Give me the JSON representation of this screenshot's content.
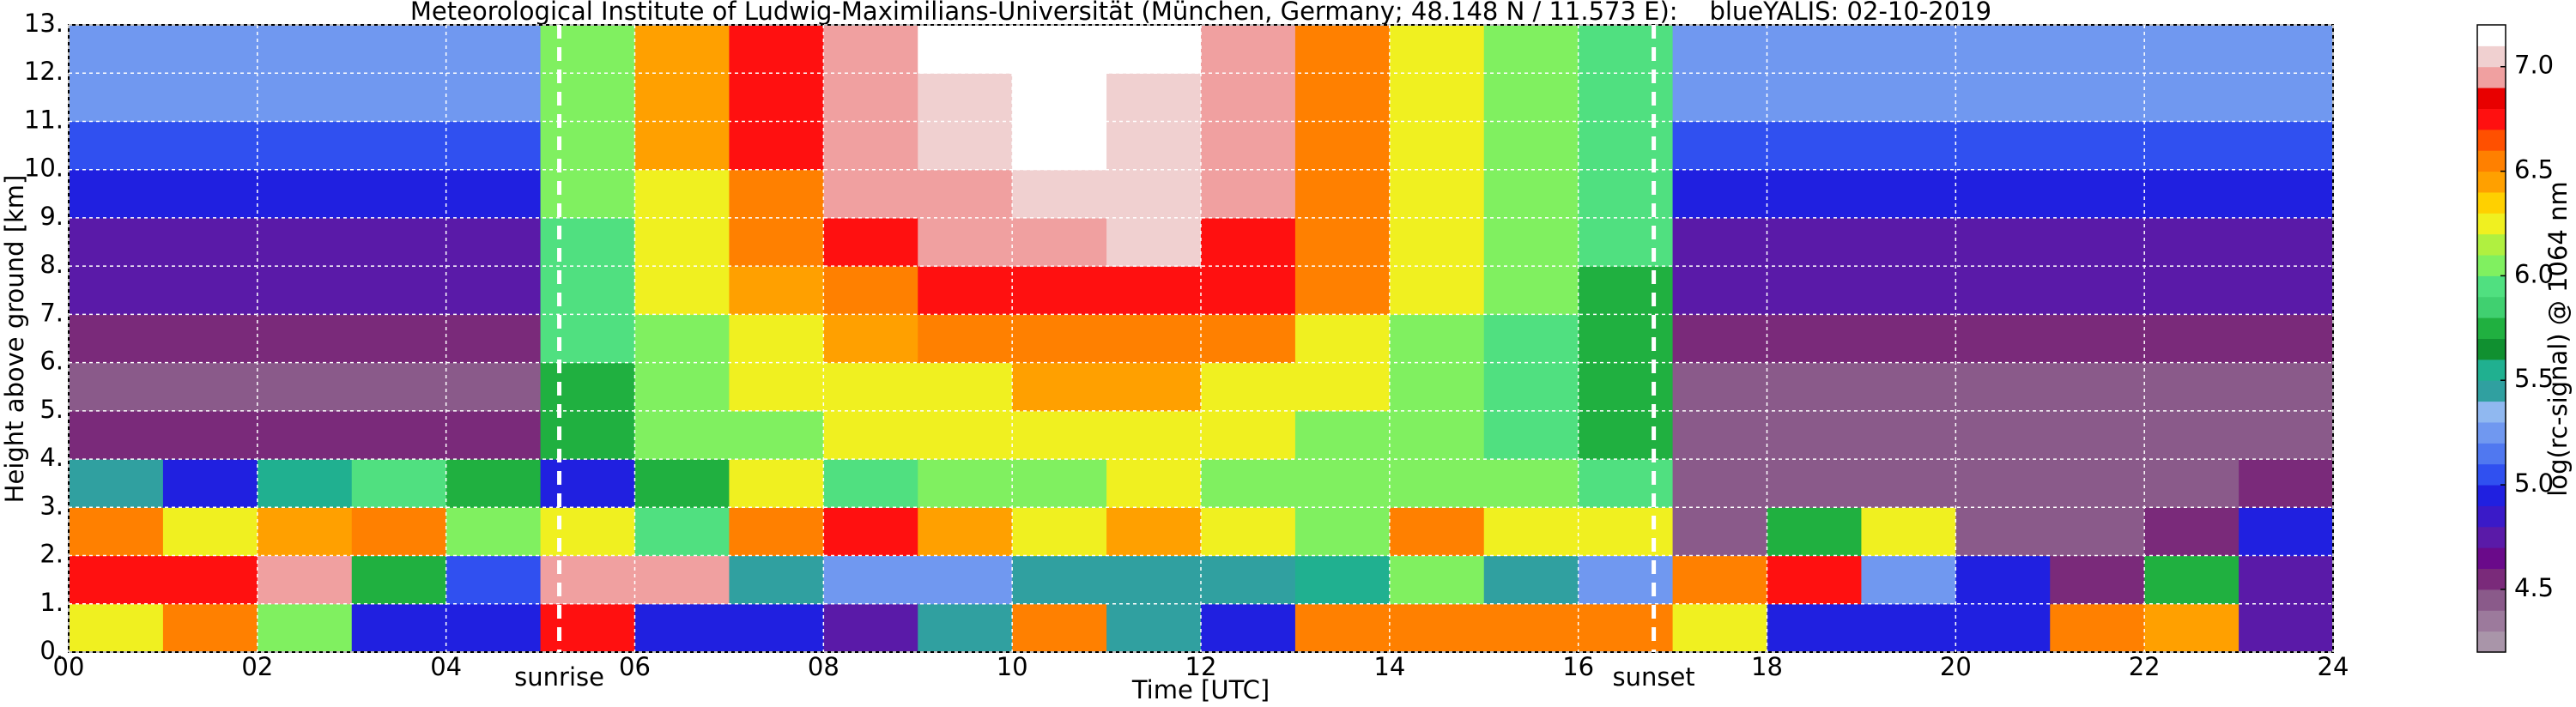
{
  "chart_data": {
    "type": "heatmap",
    "title": "Meteorological Institute of Ludwig-Maximilians-Universität (München, Germany; 48.148 N / 11.573 E):    blueYALIS: 02-10-2019",
    "x_label": "Time [UTC]",
    "y_label": "Height above ground [km]",
    "xlim": [
      0,
      24
    ],
    "ylim": [
      0,
      13
    ],
    "xticks": [
      {
        "value": 0,
        "label": "00"
      },
      {
        "value": 2,
        "label": "02"
      },
      {
        "value": 4,
        "label": "04"
      },
      {
        "value": 6,
        "label": "06"
      },
      {
        "value": 8,
        "label": "08"
      },
      {
        "value": 10,
        "label": "10"
      },
      {
        "value": 12,
        "label": "12"
      },
      {
        "value": 14,
        "label": "14"
      },
      {
        "value": 16,
        "label": "16"
      },
      {
        "value": 18,
        "label": "18"
      },
      {
        "value": 20,
        "label": "20"
      },
      {
        "value": 22,
        "label": "22"
      },
      {
        "value": 24,
        "label": "24"
      }
    ],
    "yticks": [
      {
        "value": 0,
        "label": "0."
      },
      {
        "value": 1,
        "label": "1."
      },
      {
        "value": 2,
        "label": "2."
      },
      {
        "value": 3,
        "label": "3."
      },
      {
        "value": 4,
        "label": "4."
      },
      {
        "value": 5,
        "label": "5."
      },
      {
        "value": 6,
        "label": "6."
      },
      {
        "value": 7,
        "label": "7."
      },
      {
        "value": 8,
        "label": "8."
      },
      {
        "value": 9,
        "label": "9."
      },
      {
        "value": 10,
        "label": "10."
      },
      {
        "value": 11,
        "label": "11."
      },
      {
        "value": 12,
        "label": "12."
      },
      {
        "value": 13,
        "label": "13."
      }
    ],
    "grid": true,
    "x_edges": [
      0,
      1,
      2,
      3,
      4,
      5,
      6,
      7,
      8,
      9,
      10,
      11,
      12,
      13,
      14,
      15,
      16,
      17,
      18,
      19,
      20,
      21,
      22,
      23,
      24
    ],
    "y_edges": [
      0,
      1,
      2,
      3,
      4,
      5,
      6,
      7,
      8,
      9,
      10,
      11,
      12,
      13
    ],
    "z": [
      [
        6.3,
        6.5,
        6.0,
        5.0,
        5.0,
        6.8,
        5.0,
        4.9,
        4.8,
        5.5,
        6.5,
        5.5,
        5.0,
        6.5,
        6.5,
        6.6,
        6.6,
        6.2,
        5.0,
        4.9,
        5.0,
        6.6,
        6.4,
        4.7
      ],
      [
        6.8,
        6.7,
        6.9,
        5.8,
        5.1,
        6.9,
        6.9,
        5.4,
        5.2,
        5.3,
        5.4,
        5.5,
        5.4,
        5.6,
        6.0,
        5.5,
        5.3,
        6.5,
        6.7,
        5.2,
        5.0,
        4.6,
        5.7,
        4.8
      ],
      [
        6.6,
        6.3,
        6.4,
        6.5,
        6.0,
        6.2,
        5.9,
        6.6,
        6.7,
        6.4,
        6.3,
        6.4,
        6.3,
        6.1,
        6.5,
        6.3,
        6.2,
        4.4,
        5.8,
        6.2,
        4.5,
        4.4,
        4.6,
        5.0
      ],
      [
        5.4,
        5.0,
        5.6,
        5.9,
        5.8,
        5.0,
        5.8,
        6.2,
        5.9,
        6.0,
        6.1,
        6.2,
        6.1,
        6.0,
        6.1,
        6.0,
        5.9,
        4.4,
        4.5,
        4.5,
        4.4,
        4.4,
        4.5,
        4.6
      ],
      [
        4.6,
        4.6,
        4.6,
        4.6,
        4.6,
        5.8,
        6.0,
        6.1,
        6.2,
        6.2,
        6.3,
        6.3,
        6.2,
        6.1,
        6.0,
        5.9,
        5.7,
        4.5,
        4.5,
        4.5,
        4.5,
        4.5,
        4.5,
        4.5
      ],
      [
        4.5,
        4.5,
        4.5,
        4.5,
        4.5,
        5.8,
        6.0,
        6.2,
        6.3,
        6.3,
        6.4,
        6.4,
        6.3,
        6.2,
        6.0,
        5.9,
        5.7,
        4.5,
        4.5,
        4.5,
        4.5,
        4.5,
        4.5,
        4.5
      ],
      [
        4.6,
        4.6,
        4.6,
        4.6,
        4.6,
        5.9,
        6.1,
        6.3,
        6.4,
        6.5,
        6.6,
        6.6,
        6.5,
        6.3,
        6.1,
        5.9,
        5.8,
        4.6,
        4.6,
        4.6,
        4.6,
        4.6,
        4.6,
        4.6
      ],
      [
        4.7,
        4.7,
        4.7,
        4.7,
        4.7,
        5.9,
        6.2,
        6.4,
        6.6,
        6.7,
        6.8,
        6.8,
        6.7,
        6.5,
        6.2,
        6.0,
        5.8,
        4.7,
        4.7,
        4.7,
        4.7,
        4.7,
        4.7,
        4.7
      ],
      [
        4.8,
        4.8,
        4.8,
        4.8,
        4.8,
        5.9,
        6.3,
        6.5,
        6.8,
        6.9,
        7.0,
        7.1,
        6.8,
        6.6,
        6.3,
        6.0,
        5.9,
        4.8,
        4.8,
        4.8,
        4.8,
        4.8,
        4.8,
        4.8
      ],
      [
        5.0,
        5.0,
        5.0,
        5.0,
        5.0,
        6.0,
        6.3,
        6.6,
        6.9,
        7.0,
        7.1,
        7.1,
        6.9,
        6.6,
        6.3,
        6.0,
        5.9,
        5.0,
        5.0,
        5.0,
        5.0,
        5.0,
        5.0,
        5.0
      ],
      [
        5.1,
        5.1,
        5.1,
        5.1,
        5.1,
        6.0,
        6.4,
        6.7,
        6.9,
        7.1,
        7.2,
        7.1,
        6.9,
        6.6,
        6.3,
        6.0,
        5.9,
        5.1,
        5.1,
        5.1,
        5.1,
        5.1,
        5.1,
        5.1
      ],
      [
        5.2,
        5.2,
        5.2,
        5.2,
        5.2,
        6.0,
        6.4,
        6.7,
        7.0,
        7.1,
        7.2,
        7.1,
        7.0,
        6.6,
        6.3,
        6.0,
        5.9,
        5.2,
        5.2,
        5.2,
        5.2,
        5.2,
        5.2,
        5.2
      ],
      [
        5.3,
        5.3,
        5.3,
        5.3,
        5.3,
        6.0,
        6.4,
        6.8,
        7.0,
        7.2,
        7.2,
        7.2,
        7.0,
        6.6,
        6.3,
        6.0,
        5.9,
        5.3,
        5.3,
        5.3,
        5.3,
        5.3,
        5.3,
        5.3
      ]
    ],
    "annotations": [
      {
        "text": "sunrise",
        "x": 5.2
      },
      {
        "text": "sunset",
        "x": 16.8
      }
    ],
    "colorbar": {
      "label": "log(rc-signal) @ 1064 nm",
      "zlim": [
        4.2,
        7.2
      ],
      "ticks": [
        4.5,
        {
          "value": 5,
          "label": "5.0"
        },
        5.5,
        {
          "value": 6,
          "label": "6.0"
        },
        6.5,
        {
          "value": 7,
          "label": "7.0"
        }
      ],
      "colors": [
        "#a995a9",
        "#9c7a9c",
        "#8a5a8a",
        "#7a2a7a",
        "#6a0a8a",
        "#5a1aa8",
        "#3a1ac8",
        "#2020e0",
        "#3050f0",
        "#5078f0",
        "#7098f0",
        "#90b8f0",
        "#30a0a0",
        "#20b090",
        "#109030",
        "#20b040",
        "#40d070",
        "#50e080",
        "#80f060",
        "#b0f040",
        "#f0f020",
        "#ffd000",
        "#ffa000",
        "#ff8000",
        "#ff5000",
        "#ff1010",
        "#e80000",
        "#f0a0a0",
        "#f0d0d0",
        "#ffffff"
      ]
    }
  }
}
